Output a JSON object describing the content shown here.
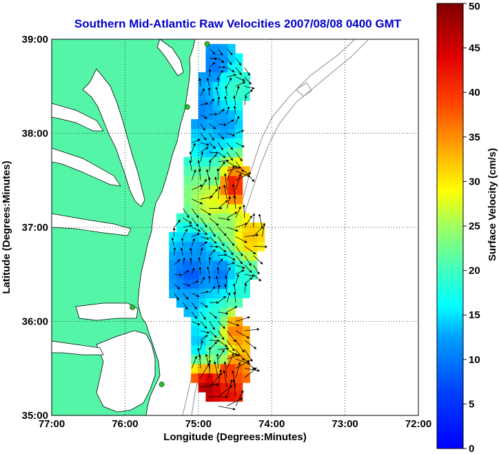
{
  "title": "Southern Mid-Atlantic Raw Velocities 2007/08/08 0400 GMT",
  "colors": {
    "title": "#0000cc",
    "land": "#55f5a8",
    "coast": "#000000",
    "bathymetry": "#a0a0a0",
    "vector": "#000000",
    "station": "#22cc22",
    "grid": "#000000"
  },
  "chart_data": {
    "type": "map",
    "title": "Southern Mid-Atlantic Raw Velocities 2007/08/08 0400 GMT",
    "xlabel": "Longitude (Degrees:Minutes)",
    "ylabel": "Latitude (Degrees:Minutes)",
    "xlim": [
      -77,
      -72
    ],
    "ylim": [
      35,
      39
    ],
    "xticks": [
      "77:00",
      "76:00",
      "75:00",
      "74:00",
      "73:00",
      "72:00"
    ],
    "yticks": [
      "35:00",
      "36:00",
      "37:00",
      "38:00",
      "39:00"
    ],
    "grid": "dotted",
    "colorbar": {
      "label": "Surface Velocity (cm/s)",
      "min": 0,
      "max": 50,
      "ticks": [
        "0",
        "5",
        "10",
        "15",
        "20",
        "25",
        "30",
        "35",
        "40",
        "45",
        "50"
      ],
      "colormap": "jet"
    },
    "stations": [
      {
        "lon": -74.88,
        "lat": 38.95
      },
      {
        "lon": -75.15,
        "lat": 38.28
      },
      {
        "lon": -75.9,
        "lat": 36.15
      },
      {
        "lon": -75.5,
        "lat": 35.33
      }
    ],
    "velocity_regions": [
      {
        "lon": -74.75,
        "lat": 38.7,
        "speed": 10
      },
      {
        "lon": -74.6,
        "lat": 38.55,
        "speed": 17
      },
      {
        "lon": -74.5,
        "lat": 38.5,
        "speed": 20
      },
      {
        "lon": -74.95,
        "lat": 38.25,
        "speed": 11
      },
      {
        "lon": -74.65,
        "lat": 38.1,
        "speed": 12
      },
      {
        "lon": -74.85,
        "lat": 37.85,
        "speed": 14
      },
      {
        "lon": -74.8,
        "lat": 37.55,
        "speed": 22
      },
      {
        "lon": -74.55,
        "lat": 37.45,
        "speed": 42
      },
      {
        "lon": -74.8,
        "lat": 37.3,
        "speed": 28
      },
      {
        "lon": -74.65,
        "lat": 37.05,
        "speed": 24
      },
      {
        "lon": -74.3,
        "lat": 36.9,
        "speed": 32
      },
      {
        "lon": -75.0,
        "lat": 36.75,
        "speed": 12
      },
      {
        "lon": -75.1,
        "lat": 36.5,
        "speed": 8
      },
      {
        "lon": -74.7,
        "lat": 36.5,
        "speed": 10
      },
      {
        "lon": -74.4,
        "lat": 36.4,
        "speed": 18
      },
      {
        "lon": -75.1,
        "lat": 36.2,
        "speed": 13
      },
      {
        "lon": -74.8,
        "lat": 36.0,
        "speed": 18
      },
      {
        "lon": -74.5,
        "lat": 35.9,
        "speed": 36
      },
      {
        "lon": -75.0,
        "lat": 35.8,
        "speed": 14
      },
      {
        "lon": -74.7,
        "lat": 35.65,
        "speed": 20
      },
      {
        "lon": -74.6,
        "lat": 35.5,
        "speed": 40
      },
      {
        "lon": -74.85,
        "lat": 35.3,
        "speed": 47
      },
      {
        "lon": -74.6,
        "lat": 35.2,
        "speed": 43
      }
    ]
  }
}
